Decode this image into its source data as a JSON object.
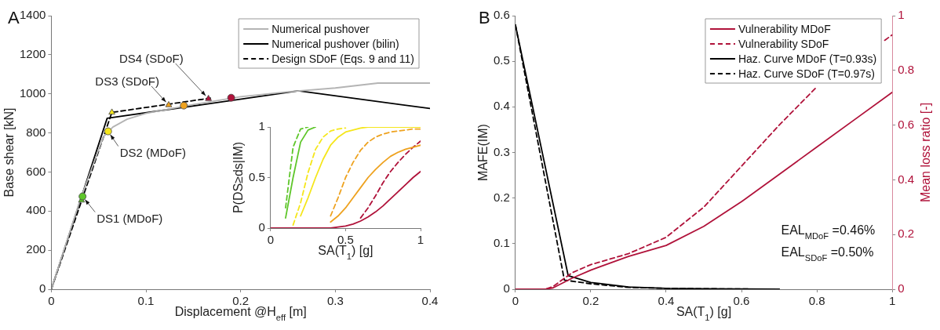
{
  "chart_data": [
    {
      "type": "line",
      "title": "A",
      "xlabel": "Displacement @H$_{eff}$ [m]",
      "ylabel": "Base shear [kN]",
      "xlim": [
        0,
        0.4
      ],
      "ylim": [
        0,
        1400
      ],
      "xticks": [
        0,
        0.1,
        0.2,
        0.3,
        0.4
      ],
      "yticks": [
        0,
        200,
        400,
        600,
        800,
        1000,
        1200,
        1400
      ],
      "legend": "top right",
      "series": [
        {
          "name": "Numerical pushover",
          "color": "#b4b4b4",
          "x": [
            0,
            0.03,
            0.055,
            0.065,
            0.08,
            0.1,
            0.15,
            0.2,
            0.25,
            0.3,
            0.345,
            0.4
          ],
          "values": [
            0,
            450,
            780,
            830,
            870,
            900,
            945,
            985,
            1010,
            1030,
            1055,
            1055
          ]
        },
        {
          "name": "Numerical pushover (bilin)",
          "color": "#000000",
          "x": [
            0,
            0.059,
            0.261,
            0.4
          ],
          "values": [
            0,
            875,
            1015,
            925
          ]
        },
        {
          "name": "Design SDoF (Eqs. 9 and 11)",
          "color": "#000000",
          "line_style": "dashed",
          "x": [
            0,
            0.064,
            0.168
          ],
          "values": [
            0,
            905,
            978
          ]
        },
        {
          "type": "scatter",
          "marker": "circle",
          "color": "#5ec62a",
          "x": [
            0.033
          ],
          "values": [
            475
          ]
        },
        {
          "type": "scatter",
          "marker": "triangle",
          "color": "#5ec62a",
          "x": [
            0.032
          ],
          "values": [
            455
          ]
        },
        {
          "type": "scatter",
          "marker": "circle",
          "color": "#f5e61b",
          "x": [
            0.06
          ],
          "values": [
            808
          ]
        },
        {
          "type": "scatter",
          "marker": "triangle",
          "color": "#f5e61b",
          "x": [
            0.064
          ],
          "values": [
            905
          ]
        },
        {
          "type": "scatter",
          "marker": "triangle",
          "color": "#eea21f",
          "x": [
            0.124
          ],
          "values": [
            943
          ]
        },
        {
          "type": "scatter",
          "marker": "circle",
          "color": "#eea21f",
          "x": [
            0.14
          ],
          "values": [
            940
          ]
        },
        {
          "type": "scatter",
          "marker": "triangle",
          "color": "#b0123a",
          "x": [
            0.166
          ],
          "values": [
            975
          ]
        },
        {
          "type": "scatter",
          "marker": "circle",
          "color": "#b0123a",
          "x": [
            0.19
          ],
          "values": [
            980
          ]
        }
      ],
      "annotations": [
        {
          "text": "DS1 (MDoF)",
          "x": 0.033,
          "y": 475
        },
        {
          "text": "DS2 (MDoF)",
          "x": 0.06,
          "y": 808
        },
        {
          "text": "DS3 (SDoF)",
          "x": 0.124,
          "y": 943
        },
        {
          "text": "DS4 (SDoF)",
          "x": 0.166,
          "y": 975
        }
      ]
    },
    {
      "type": "line",
      "xlabel": "SA(T$_{1}$) [g]",
      "ylabel": "P(DS≥ds|IM)",
      "xlim": [
        0,
        1
      ],
      "ylim": [
        0,
        1
      ],
      "xticks": [
        0,
        0.5,
        1
      ],
      "yticks": [
        0,
        0.5,
        1
      ],
      "series": [
        {
          "color": "#5ec62a",
          "x": [
            0.1,
            0.15,
            0.2,
            0.25,
            0.3
          ],
          "values": [
            0.1,
            0.5,
            0.85,
            0.97,
            1
          ]
        },
        {
          "color": "#5ec62a",
          "line_style": "dashed",
          "x": [
            0.1,
            0.15,
            0.2,
            0.25
          ],
          "values": [
            0.2,
            0.8,
            0.98,
            1
          ]
        },
        {
          "color": "#f5e61b",
          "x": [
            0.2,
            0.25,
            0.3,
            0.35,
            0.4,
            0.45,
            0.5,
            0.55,
            0.6,
            0.65,
            1
          ],
          "values": [
            0.12,
            0.3,
            0.5,
            0.68,
            0.82,
            0.9,
            0.95,
            0.97,
            0.99,
            1,
            1
          ]
        },
        {
          "color": "#f5e61b",
          "line_style": "dashed",
          "x": [
            0.15,
            0.2,
            0.25,
            0.3,
            0.35,
            0.4,
            0.45,
            0.5
          ],
          "values": [
            0.03,
            0.25,
            0.55,
            0.78,
            0.9,
            0.96,
            0.98,
            0.99
          ]
        },
        {
          "color": "#eea21f",
          "x": [
            0.4,
            0.45,
            0.5,
            0.55,
            0.6,
            0.65,
            0.7,
            0.75,
            0.8,
            0.85,
            0.9,
            0.95,
            1
          ],
          "values": [
            0.06,
            0.12,
            0.2,
            0.3,
            0.4,
            0.5,
            0.58,
            0.65,
            0.71,
            0.75,
            0.78,
            0.8,
            0.82
          ]
        },
        {
          "color": "#eea21f",
          "line_style": "dashed",
          "x": [
            0.4,
            0.45,
            0.5,
            0.55,
            0.6,
            0.65,
            0.7,
            0.75,
            0.8,
            0.85,
            0.9,
            0.95,
            1
          ],
          "values": [
            0.12,
            0.3,
            0.5,
            0.65,
            0.77,
            0.85,
            0.9,
            0.93,
            0.95,
            0.96,
            0.97,
            0.98,
            0.98
          ]
        },
        {
          "color": "#b0123a",
          "x": [
            0,
            0.4,
            0.45,
            0.5,
            0.55,
            0.6,
            0.65,
            0.7,
            0.75,
            0.8,
            0.85,
            0.9,
            0.95,
            1
          ],
          "values": [
            0,
            0,
            0.01,
            0.02,
            0.04,
            0.07,
            0.11,
            0.16,
            0.22,
            0.29,
            0.36,
            0.43,
            0.5,
            0.56
          ]
        },
        {
          "color": "#b0123a",
          "line_style": "dashed",
          "x": [
            0.6,
            0.65,
            0.7,
            0.75,
            0.8,
            0.85,
            0.9,
            0.95,
            1
          ],
          "values": [
            0.1,
            0.2,
            0.32,
            0.45,
            0.56,
            0.65,
            0.73,
            0.8,
            0.86
          ]
        }
      ]
    },
    {
      "type": "line",
      "title": "B",
      "xlabel": "SA(T$_{1}$) [g]",
      "ylabel": "MAFE(IM)",
      "y2label": "Mean loss ratio [-]",
      "xlim": [
        0,
        1
      ],
      "ylim": [
        0,
        0.6
      ],
      "y2lim": [
        0,
        1
      ],
      "xticks": [
        0,
        0.2,
        0.4,
        0.6,
        0.8,
        1
      ],
      "yticks": [
        0,
        0.1,
        0.2,
        0.3,
        0.4,
        0.5,
        0.6
      ],
      "y2ticks": [
        0,
        0.2,
        0.4,
        0.6,
        0.8,
        1
      ],
      "legend": "top right",
      "series": [
        {
          "name": "Vulnerability MDoF",
          "color": "#b0123a",
          "axis": "y2",
          "x": [
            0,
            0.08,
            0.1,
            0.15,
            0.2,
            0.3,
            0.4,
            0.5,
            0.6,
            0.7,
            0.8,
            0.9,
            1
          ],
          "values": [
            0,
            0,
            0.005,
            0.04,
            0.07,
            0.12,
            0.16,
            0.23,
            0.32,
            0.42,
            0.52,
            0.62,
            0.72
          ]
        },
        {
          "name": "Vulnerability SDoF",
          "color": "#b0123a",
          "axis": "y2",
          "line_style": "dashed",
          "x": [
            0,
            0.08,
            0.1,
            0.15,
            0.2,
            0.3,
            0.4,
            0.5,
            0.6,
            0.7,
            0.8,
            0.9,
            0.98,
            1
          ],
          "values": [
            0,
            0,
            0.01,
            0.06,
            0.09,
            0.13,
            0.19,
            0.3,
            0.45,
            0.6,
            0.74,
            null,
            0.91,
            0.93
          ]
        },
        {
          "name": "Haz. Curve MDoF (T=0.93s)",
          "color": "#000000",
          "x": [
            0,
            0.14,
            0.2,
            0.3,
            0.4,
            0.5,
            0.7
          ],
          "values": [
            0.58,
            0.03,
            0.015,
            0.005,
            0.002,
            0.001,
            0
          ]
        },
        {
          "name": "Haz. Curve SDoF (T=0.97s)",
          "color": "#000000",
          "line_style": "dashed",
          "x": [
            0,
            0.13,
            0.2,
            0.3,
            0.4,
            0.5,
            0.7
          ],
          "values": [
            0.58,
            0.02,
            0.012,
            0.004,
            0.002,
            0.001,
            0
          ]
        }
      ],
      "annotations": [
        "EAL$_{MDoF}$ =0.46%",
        "EAL$_{SDoF}$ =0.50%"
      ]
    }
  ]
}
